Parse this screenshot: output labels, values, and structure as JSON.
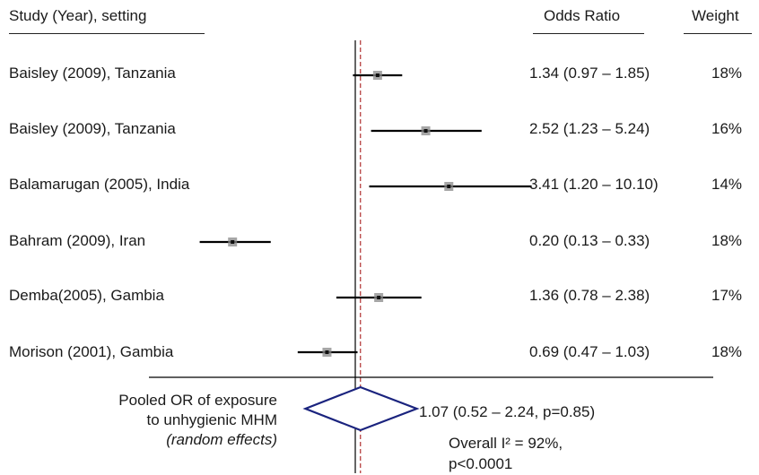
{
  "header": {
    "study_col": "Study (Year), setting",
    "or_col": "Odds Ratio",
    "weight_col": "Weight"
  },
  "chart_data": {
    "type": "forest",
    "scale": "log",
    "null_value": 1,
    "xlim": [
      0.13,
      10.1
    ],
    "studies": [
      {
        "label": "Baisley (2009), Tanzania",
        "or": 1.34,
        "lo": 0.97,
        "hi": 1.85,
        "or_text": "1.34 (0.97 – 1.85)",
        "weight": "18%"
      },
      {
        "label": "Baisley (2009), Tanzania",
        "or": 2.52,
        "lo": 1.23,
        "hi": 5.24,
        "or_text": "2.52 (1.23 – 5.24)",
        "weight": "16%"
      },
      {
        "label": "Balamarugan (2005), India",
        "or": 3.41,
        "lo": 1.2,
        "hi": 10.1,
        "or_text": "3.41 (1.20 – 10.10)",
        "weight": "14%"
      },
      {
        "label": "Bahram (2009), Iran",
        "or": 0.2,
        "lo": 0.13,
        "hi": 0.33,
        "or_text": "0.20 (0.13 – 0.33)",
        "weight": "18%"
      },
      {
        "label": "Demba(2005), Gambia",
        "or": 1.36,
        "lo": 0.78,
        "hi": 2.38,
        "or_text": "1.36 (0.78 – 2.38)",
        "weight": "17%"
      },
      {
        "label": "Morison (2001), Gambia",
        "or": 0.69,
        "lo": 0.47,
        "hi": 1.03,
        "or_text": "0.69 (0.47 – 1.03)",
        "weight": "18%"
      }
    ],
    "pooled": {
      "or": 1.07,
      "lo": 0.52,
      "hi": 2.24,
      "label_line1": "Pooled OR of exposure",
      "label_line2": "to unhygienic MHM",
      "label_line3": "(random effects)",
      "or_text": "1.07 (0.52 – 2.24, p=0.85)",
      "het_line1": "Overall I² = 92%,",
      "het_line2": "p<0.0001"
    },
    "colors": {
      "line": "#000000",
      "reference": "#b03030",
      "diamond": "#1a237e",
      "marker": "#888888"
    }
  }
}
